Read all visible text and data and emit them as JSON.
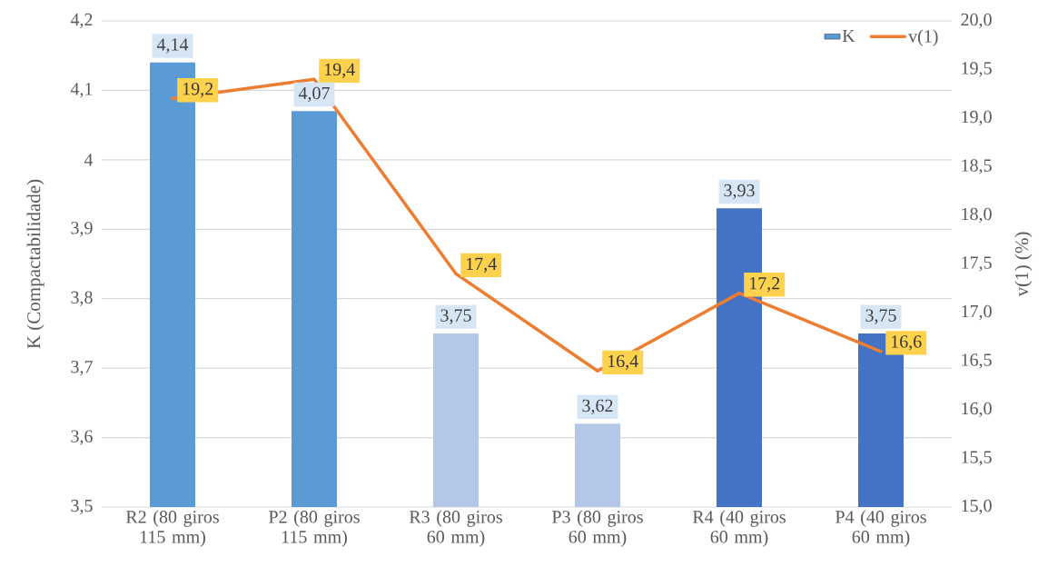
{
  "chart_data": {
    "type": "bar",
    "categories": [
      "R2 (80 giros 115 mm)",
      "P2 (80 giros 115 mm)",
      "R3 (80 giros 60 mm)",
      "P3 (80 giros 60 mm)",
      "R4 (40 giros 60 mm)",
      "P4 (40 giros 60 mm)"
    ],
    "series": [
      {
        "name": "K",
        "type": "bar",
        "color": "#5b9bd5",
        "colors": [
          "#5b9bd5",
          "#5b9bd5",
          "#b4c7e7",
          "#b4c7e7",
          "#4472c4",
          "#4472c4"
        ],
        "values": [
          4.14,
          4.07,
          3.75,
          3.62,
          3.93,
          3.75
        ],
        "value_labels": [
          "4,14",
          "4,07",
          "3,75",
          "3,62",
          "3,93",
          "3,75"
        ]
      },
      {
        "name": "v(1)",
        "type": "line",
        "axis": "y2",
        "color": "#ed7d31",
        "values": [
          19.2,
          19.4,
          17.4,
          16.4,
          17.2,
          16.6
        ],
        "value_labels": [
          "19,2",
          "19,4",
          "17,4",
          "16,4",
          "17,2",
          "16,6"
        ]
      }
    ],
    "ylabel": "K (Compactabilidade)",
    "y2label": "v(1) (%)",
    "ylim": [
      3.5,
      4.2
    ],
    "yticks": [
      {
        "value": 3.5,
        "label": "3,5"
      },
      {
        "value": 3.6,
        "label": "3,6"
      },
      {
        "value": 3.7,
        "label": "3,7"
      },
      {
        "value": 3.8,
        "label": "3,8"
      },
      {
        "value": 3.9,
        "label": "3,9"
      },
      4,
      {
        "value": 4.1,
        "label": "4,1"
      },
      {
        "value": 4.2,
        "label": "4,2"
      }
    ],
    "y2lim": [
      15,
      20
    ],
    "y2ticks": [
      {
        "value": 15,
        "label": "15,0"
      },
      {
        "value": 15.5,
        "label": "15,5"
      },
      {
        "value": 16,
        "label": "16,0"
      },
      {
        "value": 16.5,
        "label": "16,5"
      },
      {
        "value": 17,
        "label": "17,0"
      },
      {
        "value": 17.5,
        "label": "17,5"
      },
      {
        "value": 18,
        "label": "18,0"
      },
      {
        "value": 18.5,
        "label": "18,5"
      },
      {
        "value": 19,
        "label": "19,0"
      },
      {
        "value": 19.5,
        "label": "19,5"
      },
      {
        "value": 20,
        "label": "20,0"
      }
    ],
    "grid": "y",
    "legend": "top right"
  }
}
